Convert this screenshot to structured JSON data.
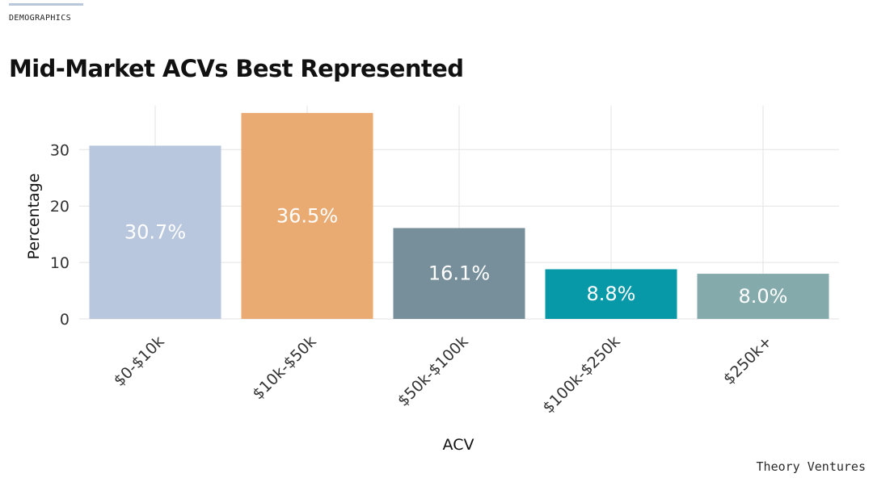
{
  "section": {
    "label": "DEMOGRAPHICS"
  },
  "page": {
    "title": "Mid-Market ACVs Best Represented"
  },
  "footer": {
    "brand": "Theory Ventures"
  },
  "chart_data": {
    "type": "bar",
    "title": "Mid-Market ACVs Best Represented",
    "xlabel": "ACV",
    "ylabel": "Percentage",
    "categories": [
      "$0-$10k",
      "$10k-$50k",
      "$50k-$100k",
      "$100k-$250k",
      "$250k+"
    ],
    "values": [
      30.7,
      36.5,
      16.1,
      8.8,
      8.0
    ],
    "data_labels": [
      "30.7%",
      "36.5%",
      "16.1%",
      "8.8%",
      "8.0%"
    ],
    "colors": [
      "#b8c7dd",
      "#eaab72",
      "#778f9b",
      "#0899a9",
      "#84aaac"
    ],
    "ylim": [
      0,
      38
    ],
    "yticks": [
      0,
      10,
      20,
      30
    ],
    "grid": true,
    "legend": "none"
  }
}
